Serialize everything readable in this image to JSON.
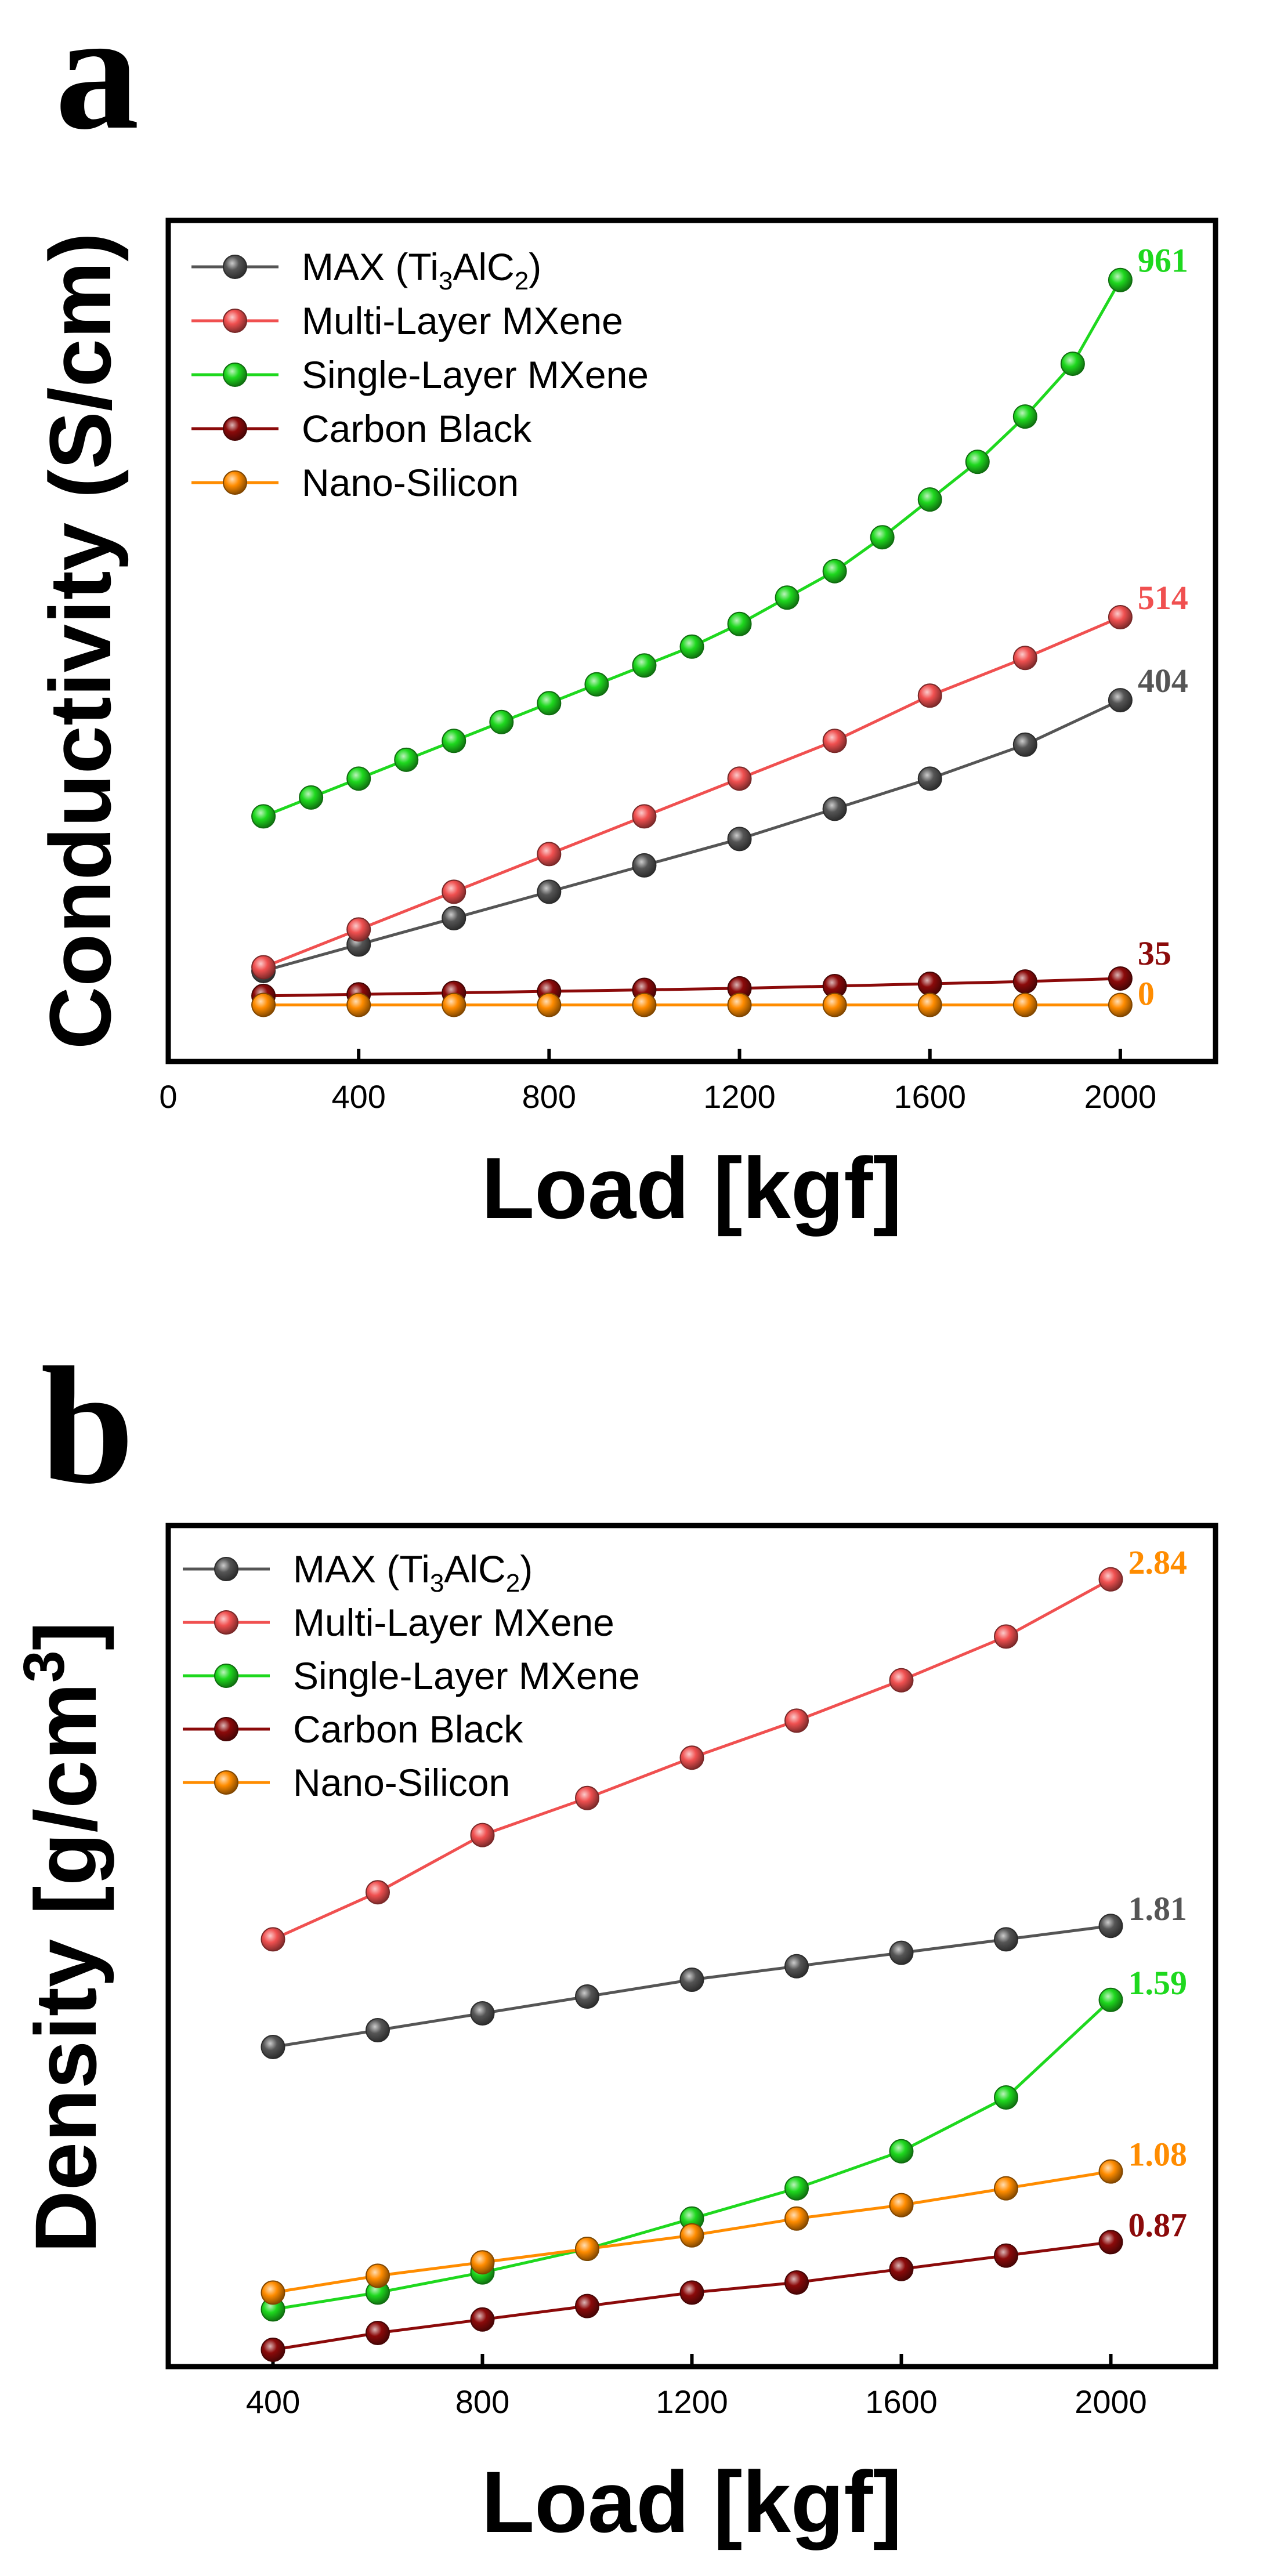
{
  "chart_data": [
    {
      "panel": "a",
      "type": "line",
      "xlabel": "Load [kgf]",
      "ylabel": "Conductivity (S/cm)",
      "xlim": [
        0,
        2200
      ],
      "ylim": [
        -75,
        1040
      ],
      "x_ticks": [
        0,
        400,
        800,
        1200,
        1600,
        2000
      ],
      "y_ticks_shown": false,
      "legend_position": "top-left",
      "series": [
        {
          "name": "MAX (Ti3AlC2)",
          "legend_parts": [
            "MAX (Ti",
            "3",
            "AlC",
            "2",
            ")"
          ],
          "color": "#555555",
          "x": [
            200,
            400,
            600,
            800,
            1000,
            1200,
            1400,
            1600,
            1800,
            2000
          ],
          "values": [
            45,
            80,
            115,
            150,
            185,
            220,
            260,
            300,
            345,
            404
          ],
          "end_label": "404"
        },
        {
          "name": "Multi-Layer MXene",
          "color": "#f05050",
          "x": [
            200,
            400,
            600,
            800,
            1000,
            1200,
            1400,
            1600,
            1800,
            2000
          ],
          "values": [
            50,
            100,
            150,
            200,
            250,
            300,
            350,
            410,
            460,
            514
          ],
          "end_label": "514"
        },
        {
          "name": "Single-Layer MXene",
          "color": "#1ed81e",
          "x": [
            200,
            300,
            400,
            500,
            600,
            700,
            800,
            900,
            1000,
            1100,
            1200,
            1300,
            1400,
            1500,
            1600,
            1700,
            1800,
            1900,
            2000
          ],
          "values": [
            250,
            275,
            300,
            325,
            350,
            375,
            400,
            425,
            450,
            475,
            505,
            540,
            575,
            620,
            670,
            720,
            780,
            850,
            961
          ],
          "end_label": "961"
        },
        {
          "name": "Carbon Black",
          "color": "#8b0a0a",
          "x": [
            200,
            400,
            600,
            800,
            1000,
            1200,
            1400,
            1600,
            1800,
            2000
          ],
          "values": [
            12,
            14,
            16,
            18,
            20,
            22,
            25,
            28,
            31,
            35
          ],
          "end_label": "35"
        },
        {
          "name": "Nano-Silicon",
          "color": "#ff8c00",
          "x": [
            200,
            400,
            600,
            800,
            1000,
            1200,
            1400,
            1600,
            1800,
            2000
          ],
          "values": [
            0,
            0,
            0,
            0,
            0,
            0,
            0,
            0,
            0,
            0
          ],
          "end_label": "0"
        }
      ]
    },
    {
      "panel": "b",
      "type": "line",
      "xlabel": "Load [kgf]",
      "ylabel_parts": [
        "Density [g/cm",
        "3",
        "]"
      ],
      "xlim": [
        200,
        2200
      ],
      "ylim": [
        0.5,
        3.0
      ],
      "x_ticks": [
        400,
        800,
        1200,
        1600,
        2000
      ],
      "y_ticks_shown": false,
      "legend_position": "top-left",
      "series": [
        {
          "name": "MAX (Ti3AlC2)",
          "legend_parts": [
            "MAX (Ti",
            "3",
            "AlC",
            "2",
            ")"
          ],
          "color": "#555555",
          "x": [
            400,
            600,
            800,
            1000,
            1200,
            1400,
            1600,
            1800,
            2000
          ],
          "values": [
            1.45,
            1.5,
            1.55,
            1.6,
            1.65,
            1.69,
            1.73,
            1.77,
            1.81
          ],
          "end_label": "1.81",
          "label_color": "#555555"
        },
        {
          "name": "Multi-Layer MXene",
          "color": "#f05050",
          "x": [
            400,
            600,
            800,
            1000,
            1200,
            1400,
            1600,
            1800,
            2000
          ],
          "values": [
            1.77,
            1.91,
            2.08,
            2.19,
            2.31,
            2.42,
            2.54,
            2.67,
            2.84
          ],
          "end_label": "2.84",
          "label_color": "#ff8c00"
        },
        {
          "name": "Single-Layer MXene",
          "color": "#1ed81e",
          "x": [
            400,
            600,
            800,
            1000,
            1200,
            1400,
            1600,
            1800,
            2000
          ],
          "values": [
            0.67,
            0.72,
            0.78,
            0.85,
            0.94,
            1.03,
            1.14,
            1.3,
            1.59
          ],
          "end_label": "1.59",
          "label_color": "#1ed81e"
        },
        {
          "name": "Carbon Black",
          "color": "#8b0a0a",
          "x": [
            400,
            600,
            800,
            1000,
            1200,
            1400,
            1600,
            1800,
            2000
          ],
          "values": [
            0.55,
            0.6,
            0.64,
            0.68,
            0.72,
            0.75,
            0.79,
            0.83,
            0.87
          ],
          "end_label": "0.87",
          "label_color": "#8b0a0a"
        },
        {
          "name": "Nano-Silicon",
          "color": "#ff8c00",
          "x": [
            400,
            600,
            800,
            1000,
            1200,
            1400,
            1600,
            1800,
            2000
          ],
          "values": [
            0.72,
            0.77,
            0.81,
            0.85,
            0.89,
            0.94,
            0.98,
            1.03,
            1.08
          ],
          "end_label": "1.08",
          "label_color": "#ff8c00"
        }
      ]
    }
  ]
}
